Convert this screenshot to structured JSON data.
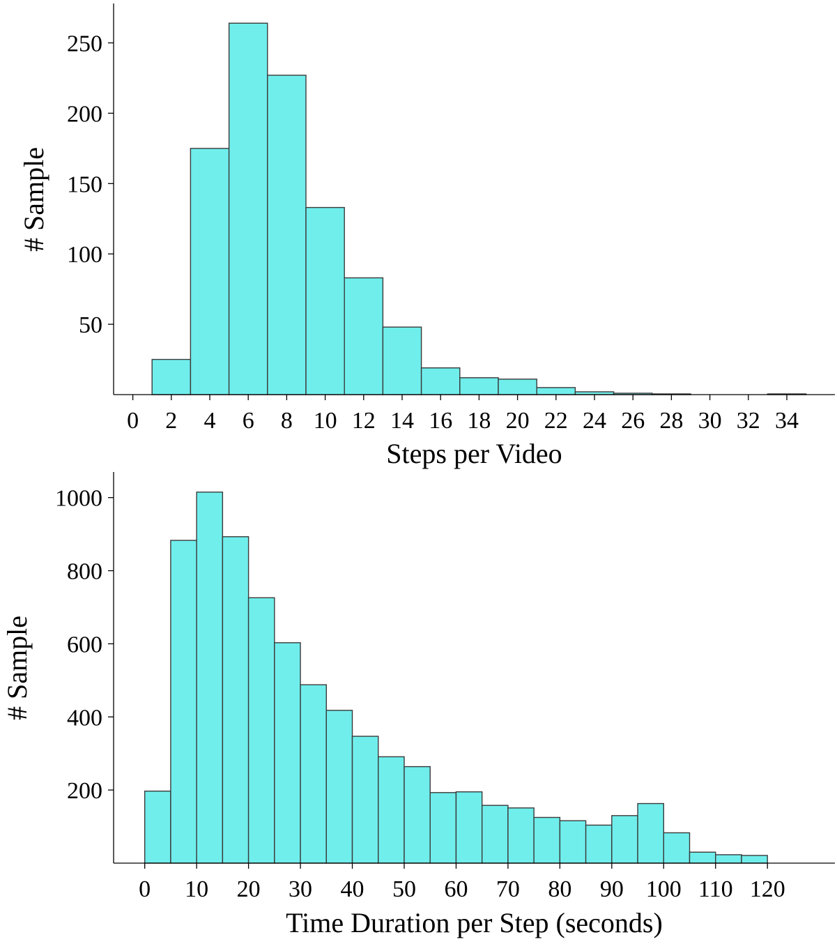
{
  "chart_data": [
    {
      "type": "bar",
      "xlabel": "Steps per Video",
      "ylabel": "# Sample",
      "bar_color": "#70EEEC",
      "bin_width": 2,
      "bin_starts": [
        1,
        3,
        5,
        7,
        9,
        11,
        13,
        15,
        17,
        19,
        21,
        23,
        25,
        27,
        29,
        31,
        33
      ],
      "values": [
        25,
        175,
        264,
        227,
        133,
        83,
        48,
        19,
        12,
        11,
        5,
        2,
        1,
        0.5,
        0,
        0,
        0.5
      ],
      "xlim": [
        -1,
        36.5
      ],
      "ylim": [
        0,
        278
      ],
      "xticks": [
        0,
        2,
        4,
        6,
        8,
        10,
        12,
        14,
        16,
        18,
        20,
        22,
        24,
        26,
        28,
        30,
        32,
        34
      ],
      "yticks": [
        50,
        100,
        150,
        200,
        250
      ],
      "grid": false
    },
    {
      "type": "bar",
      "xlabel": "Time Duration per Step (seconds)",
      "ylabel": "# Sample",
      "bar_color": "#70EEEC",
      "bin_width": 5,
      "bin_starts": [
        0,
        5,
        10,
        15,
        20,
        25,
        30,
        35,
        40,
        45,
        50,
        55,
        60,
        65,
        70,
        75,
        80,
        85,
        90,
        95,
        100,
        105,
        110,
        115
      ],
      "values": [
        197,
        883,
        1015,
        893,
        726,
        603,
        488,
        418,
        347,
        291,
        264,
        193,
        195,
        158,
        151,
        125,
        116,
        104,
        130,
        163,
        83,
        30,
        23,
        21
      ],
      "xlim": [
        -6,
        133
      ],
      "ylim": [
        0,
        1070
      ],
      "xticks": [
        0,
        10,
        20,
        30,
        40,
        50,
        60,
        70,
        80,
        90,
        100,
        110,
        120
      ],
      "yticks": [
        200,
        400,
        600,
        800,
        1000
      ],
      "grid": false
    }
  ]
}
